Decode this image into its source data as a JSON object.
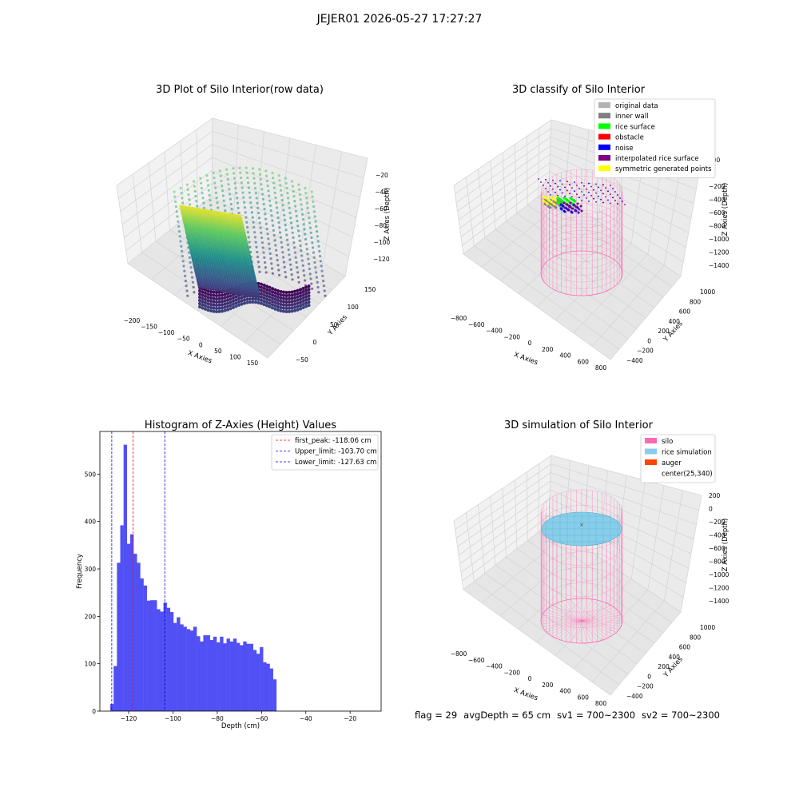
{
  "suptitle": "JEJER01 2026-05-27 17:27:27",
  "panel_titles": {
    "raw": "3D Plot of Silo Interior(row data)",
    "classify": "3D classify of Silo Interior",
    "histogram": "Histogram of Z-Axies (Height) Values",
    "simulation": "3D simulation of Silo Interior"
  },
  "footer": {
    "flag": "flag = 29",
    "avg_depth": "avgDepth = 65 cm",
    "sv1": "sv1 = 700~2300",
    "sv2": "sv2 = 700~2300"
  },
  "colors": {
    "histogram_bars": "#5050f5",
    "first_peak_line": "#ff0000",
    "limit_lines": "#0000cc",
    "original_data": "#b3b3b3",
    "inner_wall": "#808080",
    "rice_surface": "#00ff00",
    "obstacle": "#ff0000",
    "noise": "#0000ff",
    "interpolated_rice_surface": "#800080",
    "symmetric_generated_points": "#ffff00",
    "silo": "#ff69b4",
    "rice_simulation": "#87ceeb",
    "auger": "#ff4500"
  },
  "raw_axes": {
    "xlabel": "X Axies",
    "ylabel": "Y Axies",
    "zlabel": "Z Axies (Depth)",
    "xticks": [
      "−200",
      "−150",
      "−100",
      "−50",
      "0",
      "50",
      "100",
      "150"
    ],
    "yticks": [
      "−50",
      "0",
      "50",
      "100",
      "150"
    ],
    "zticks": [
      "−20",
      "−40",
      "−60",
      "−80",
      "−100",
      "−120"
    ]
  },
  "classify_axes": {
    "xlabel": "X Axies",
    "ylabel": "Y Axies",
    "zlabel": "Z Axies (Depth)",
    "xticks": [
      "−800",
      "−600",
      "−400",
      "−200",
      "0",
      "200",
      "400",
      "600",
      "800"
    ],
    "yticks": [
      "−400",
      "−200",
      "0",
      "200",
      "400",
      "600",
      "800",
      "1000"
    ],
    "zticks": [
      "200",
      "0",
      "−200",
      "−400",
      "−600",
      "−800",
      "−1000",
      "−1200",
      "−1400"
    ],
    "legend": [
      {
        "label": "original data",
        "color": "#b3b3b3"
      },
      {
        "label": "inner wall",
        "color": "#808080"
      },
      {
        "label": "rice surface",
        "color": "#00ff00"
      },
      {
        "label": "obstacle",
        "color": "#ff0000"
      },
      {
        "label": "noise",
        "color": "#0000ff"
      },
      {
        "label": "interpolated rice surface",
        "color": "#800080"
      },
      {
        "label": "symmetric generated points",
        "color": "#ffff00"
      }
    ]
  },
  "simulation_axes": {
    "xlabel": "X Axies",
    "ylabel": "Y Axies",
    "zlabel": "Z Axies (Depth)",
    "xticks": [
      "−800",
      "−600",
      "−400",
      "−200",
      "0",
      "200",
      "400",
      "600",
      "800"
    ],
    "yticks": [
      "−400",
      "−200",
      "0",
      "200",
      "400",
      "600",
      "800",
      "1000"
    ],
    "zticks": [
      "200",
      "0",
      "−200",
      "−400",
      "−600",
      "−800",
      "−1000",
      "−1200",
      "−1400"
    ],
    "legend": [
      {
        "label": "silo",
        "color": "#ff69b4"
      },
      {
        "label": "rice simulation",
        "color": "#87ceeb"
      },
      {
        "label": "auger",
        "color": "#ff4500"
      },
      {
        "label": "center(25,340)",
        "color": ""
      }
    ]
  },
  "chart_data": [
    {
      "type": "bar",
      "title": "Histogram of Z-Axies (Height) Values",
      "xlabel": "Depth (cm)",
      "ylabel": "Frequency",
      "xlim": [
        -133,
        -6
      ],
      "ylim": [
        0,
        590
      ],
      "xticks": [
        -120,
        -100,
        -80,
        -60,
        -40,
        -20
      ],
      "xtick_labels": [
        "−120",
        "−100",
        "−80",
        "−60",
        "−40",
        "−20"
      ],
      "yticks": [
        0,
        100,
        200,
        300,
        400,
        500
      ],
      "bin_start": -128.3,
      "bin_width": 1.5,
      "values": [
        15,
        95,
        313,
        392,
        562,
        353,
        373,
        332,
        313,
        280,
        265,
        233,
        234,
        234,
        215,
        210,
        229,
        218,
        209,
        186,
        198,
        183,
        178,
        173,
        170,
        178,
        158,
        147,
        160,
        160,
        150,
        157,
        145,
        157,
        143,
        153,
        147,
        153,
        144,
        139,
        147,
        142,
        142,
        129,
        121,
        135,
        103,
        100,
        90,
        67
      ],
      "vlines": [
        {
          "label": "first_peak: -118.06 cm",
          "x": -118.06,
          "color": "#ff0000"
        },
        {
          "label": "Upper_limit: -103.70 cm",
          "x": -103.7,
          "color": "#0000cc"
        },
        {
          "label": "Lower_limit: -127.63 cm",
          "x": -127.63,
          "color": "#0000cc"
        }
      ],
      "legend": "top-right"
    }
  ]
}
